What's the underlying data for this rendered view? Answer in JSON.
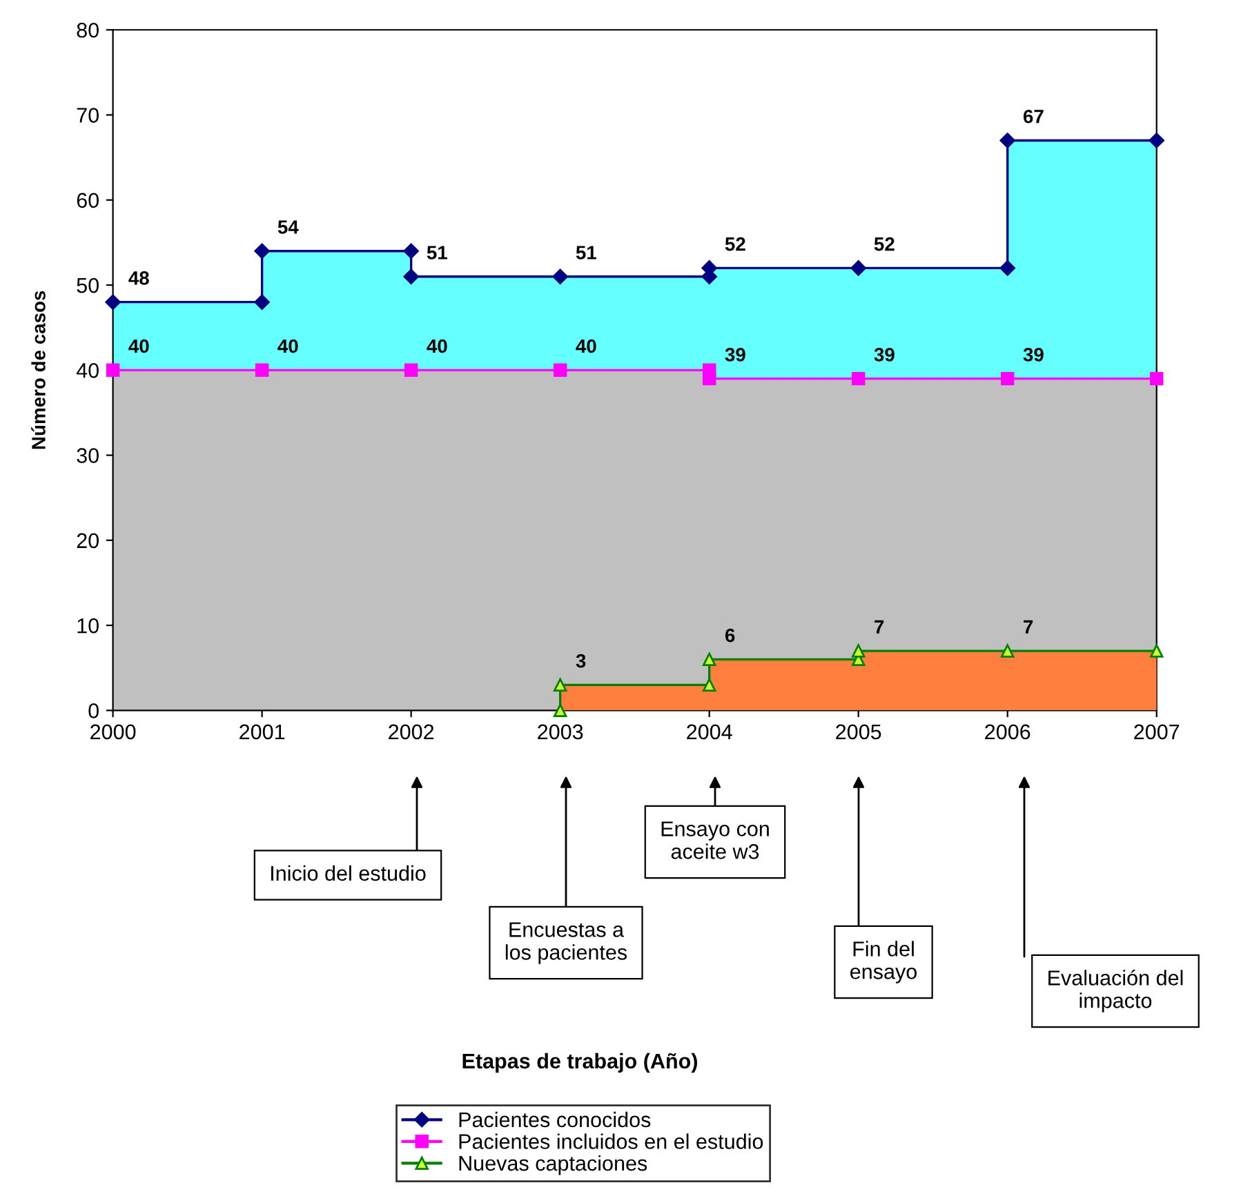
{
  "chart_data": {
    "type": "area",
    "ylabel": "Número de casos",
    "xlim": [
      2000,
      2007
    ],
    "xticks": [
      2000,
      2001,
      2002,
      2003,
      2004,
      2005,
      2006,
      2007
    ],
    "ylim": [
      0,
      80
    ],
    "yticks": [
      0,
      10,
      20,
      30,
      40,
      50,
      60,
      70,
      80
    ],
    "grid": false,
    "legend": "bottom",
    "series": [
      {
        "name": "Pacientes conocidos",
        "color": "#66ffff",
        "marker": "diamond",
        "x": [
          2000,
          2001,
          2001,
          2002,
          2002,
          2003,
          2004,
          2004,
          2005,
          2006,
          2006,
          2007
        ],
        "values": [
          48,
          48,
          54,
          54,
          51,
          51,
          51,
          52,
          52,
          52,
          67,
          67
        ],
        "value_labels": [
          "48",
          null,
          "54",
          null,
          "51",
          "51",
          null,
          "52",
          "52",
          null,
          "67",
          null
        ]
      },
      {
        "name": "Pacientes incluidos en el estudio",
        "color": "#c0c0c0",
        "marker": "square",
        "x": [
          2000,
          2001,
          2002,
          2003,
          2004,
          2004,
          2005,
          2006,
          2007
        ],
        "values": [
          40,
          40,
          40,
          40,
          40,
          39,
          39,
          39,
          39
        ],
        "value_labels": [
          "40",
          "40",
          "40",
          "40",
          null,
          "39",
          "39",
          "39",
          null
        ]
      },
      {
        "name": "Nuevas captaciones",
        "color": "#ff7f3f",
        "marker": "triangle",
        "x": [
          2003,
          2003,
          2004,
          2004,
          2005,
          2005,
          2006,
          2007
        ],
        "values": [
          0,
          3,
          3,
          6,
          6,
          7,
          7,
          7
        ],
        "value_labels": [
          null,
          "3",
          null,
          "6",
          null,
          "7",
          "7",
          null
        ]
      }
    ],
    "annotations": [
      "Inicio del estudio",
      "Encuestas a\nlos pacientes",
      "Ensayo con\naceite w3",
      "Fin del\nensayo",
      "Evaluación del\nimpacto",
      "Etapas de trabajo (Año)"
    ]
  }
}
